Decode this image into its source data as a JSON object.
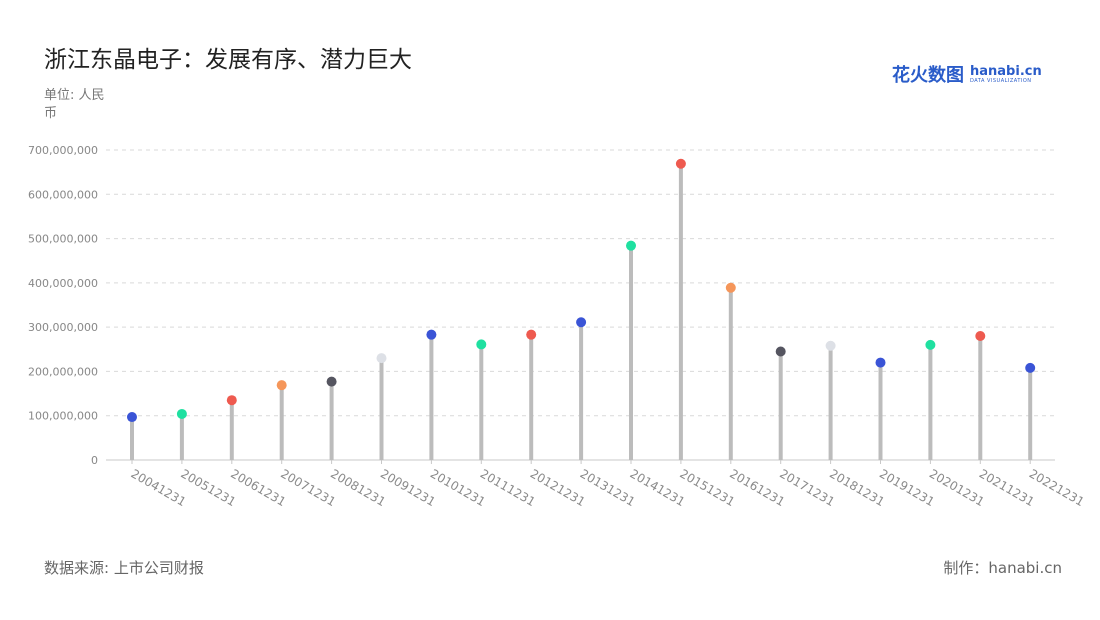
{
  "title": "浙江东晶电子：发展有序、潜力巨大",
  "unit_label": "单位: 人民币",
  "logo": {
    "cn": "花火数图",
    "en": "hanabi.cn",
    "sub": "DATA VISUALIZATION"
  },
  "source": "数据来源: 上市公司财报",
  "maker": "制作：hanabi.cn",
  "chart_data": {
    "type": "lollipop",
    "title": "浙江东晶电子：发展有序、潜力巨大",
    "ylabel": "单位: 人民币",
    "xlabel": "",
    "ylim": [
      0,
      700000000
    ],
    "yticks": [
      0,
      100000000,
      200000000,
      300000000,
      400000000,
      500000000,
      600000000,
      700000000
    ],
    "ytick_labels": [
      "0",
      "100,000,000",
      "200,000,000",
      "300,000,000",
      "400,000,000",
      "500,000,000",
      "600,000,000",
      "700,000,000"
    ],
    "grid": true,
    "categories": [
      "20041231",
      "20051231",
      "20061231",
      "20071231",
      "20081231",
      "20091231",
      "20101231",
      "20111231",
      "20121231",
      "20131231",
      "20141231",
      "20151231",
      "20161231",
      "20171231",
      "20181231",
      "20191231",
      "20201231",
      "20211231",
      "20221231"
    ],
    "values": [
      97000000,
      104000000,
      135000000,
      169000000,
      177000000,
      230000000,
      283000000,
      261000000,
      283000000,
      311000000,
      484000000,
      669000000,
      389000000,
      245000000,
      258000000,
      220000000,
      260000000,
      280000000,
      208000000
    ],
    "colors": [
      "#3a54d6",
      "#1fe0a0",
      "#ee5a4f",
      "#f5965a",
      "#555560",
      "#dde0e6",
      "#3a54d6",
      "#1fe0a0",
      "#ee5a4f",
      "#3a54d6",
      "#1fe0a0",
      "#ee5a4f",
      "#f5965a",
      "#555560",
      "#dde0e6",
      "#3a54d6",
      "#1fe0a0",
      "#ee5a4f",
      "#3a54d6"
    ]
  }
}
